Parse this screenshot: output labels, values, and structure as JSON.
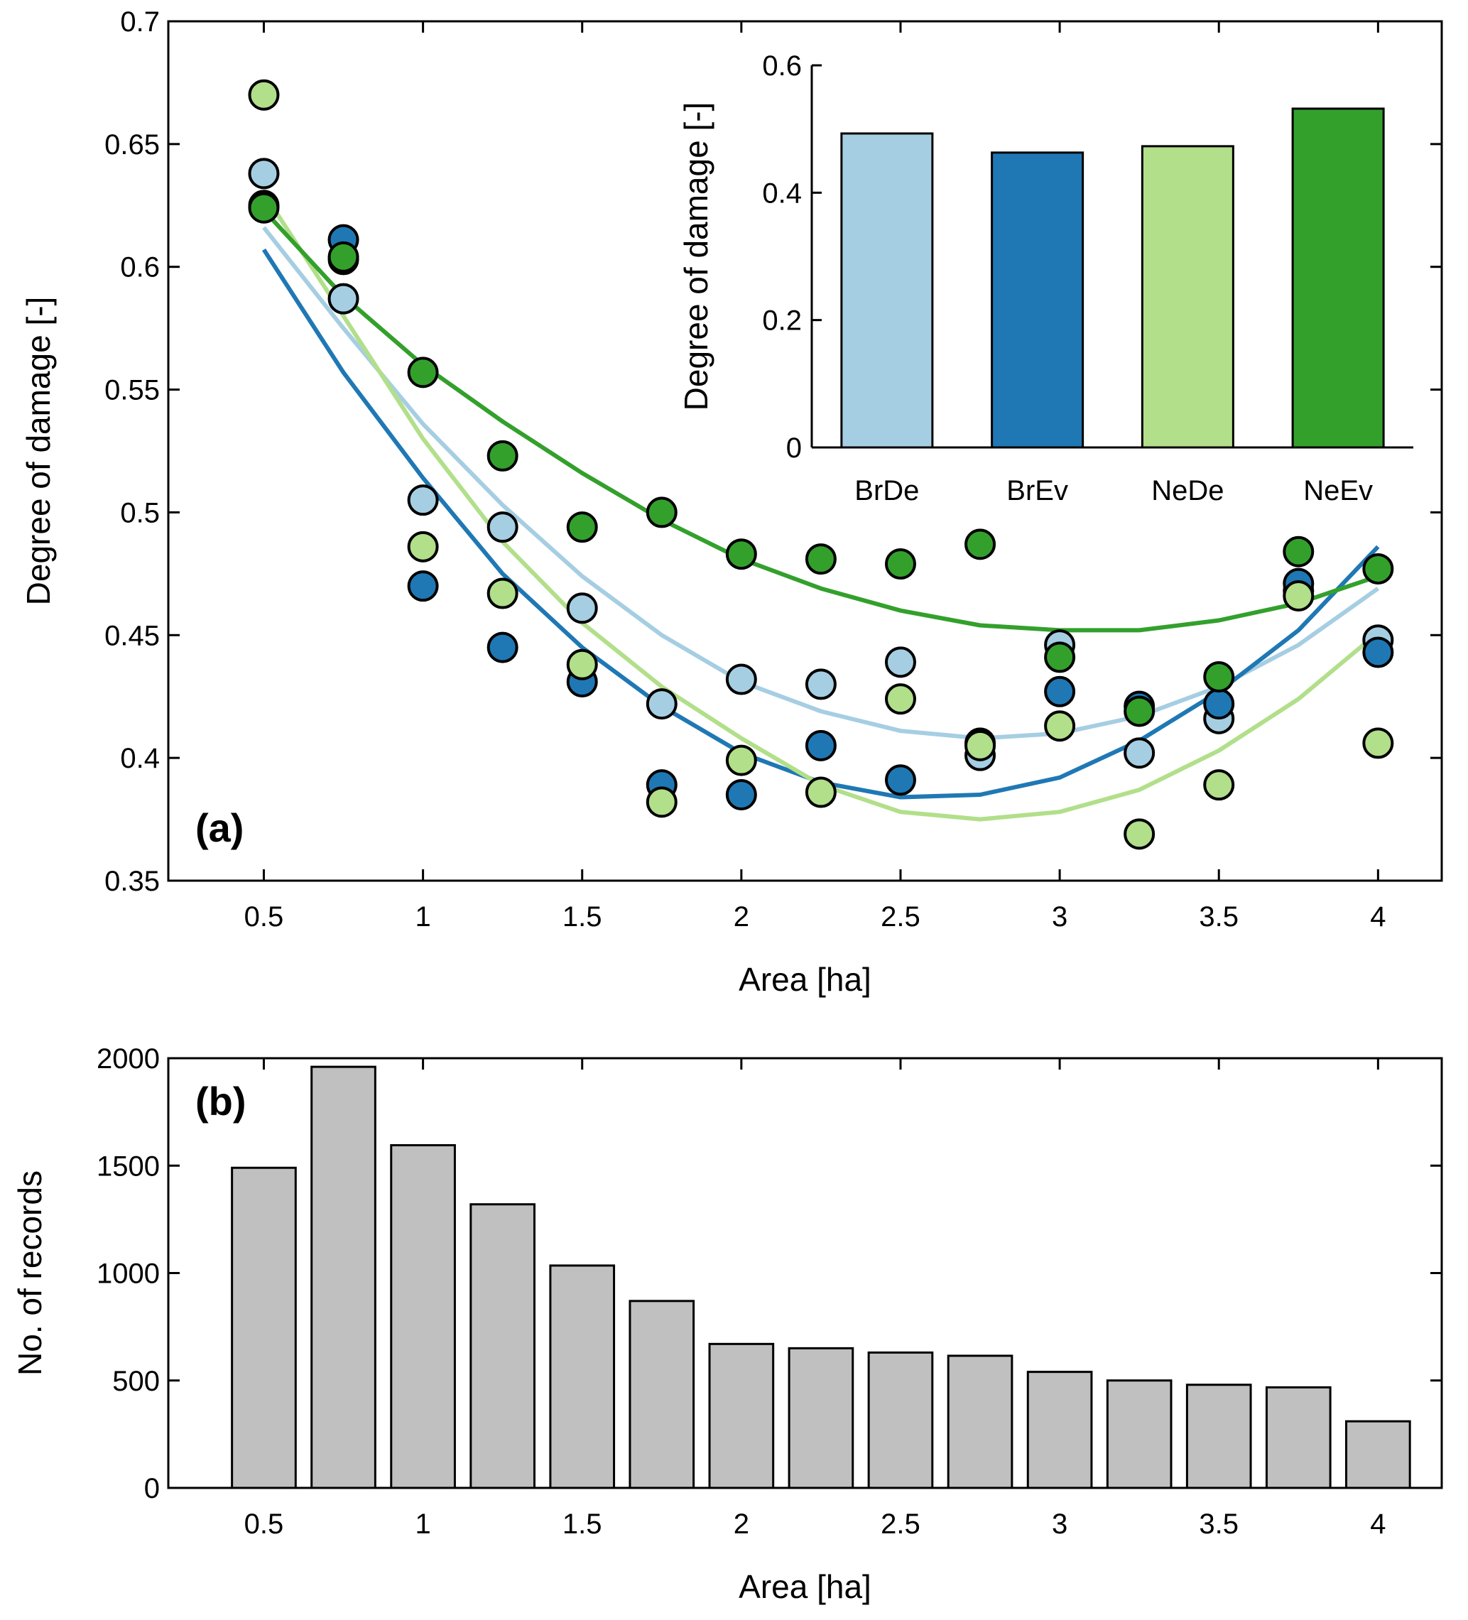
{
  "colors": {
    "BrDe": "#a6cee3",
    "BrEv": "#1f78b4",
    "NeDe": "#b2df8a",
    "NeEv": "#33a02c",
    "records_bar": "#c0c0c0",
    "marker_edge": "#000000"
  },
  "chart_data": [
    {
      "id": "a",
      "type": "scatter",
      "panel_label": "(a)",
      "xlabel": "Area [ha]",
      "ylabel": "Degree of damage [-]",
      "xlim": [
        0.2,
        4.2
      ],
      "ylim": [
        0.35,
        0.7
      ],
      "xticks": [
        0.5,
        1,
        1.5,
        2,
        2.5,
        3,
        3.5,
        4
      ],
      "xtick_labels": [
        "0.5",
        "1",
        "1.5",
        "2",
        "2.5",
        "3",
        "3.5",
        "4"
      ],
      "yticks": [
        0.35,
        0.4,
        0.45,
        0.5,
        0.55,
        0.6,
        0.65,
        0.7
      ],
      "ytick_labels": [
        "0.35",
        "0.4",
        "0.45",
        "0.5",
        "0.55",
        "0.6",
        "0.65",
        "0.7"
      ],
      "x": [
        0.5,
        0.75,
        1.0,
        1.25,
        1.5,
        1.75,
        2.0,
        2.25,
        2.5,
        2.75,
        3.0,
        3.25,
        3.5,
        3.75,
        4.0
      ],
      "series": [
        {
          "name": "BrDe",
          "points": [
            0.638,
            0.587,
            0.505,
            0.494,
            0.461,
            0.422,
            0.432,
            0.43,
            0.439,
            0.401,
            0.446,
            0.402,
            0.416,
            0.468,
            0.448
          ],
          "fit": [
            0.616,
            0.575,
            0.536,
            0.503,
            0.474,
            0.45,
            0.431,
            0.419,
            0.411,
            0.408,
            0.41,
            0.417,
            0.429,
            0.446,
            0.469
          ]
        },
        {
          "name": "BrEv",
          "points": [
            0.625,
            0.611,
            0.47,
            0.445,
            0.431,
            0.389,
            0.385,
            0.405,
            0.391,
            0.406,
            0.427,
            0.421,
            0.422,
            0.471,
            0.443
          ],
          "fit": [
            0.607,
            0.557,
            0.514,
            0.475,
            0.445,
            0.421,
            0.402,
            0.39,
            0.384,
            0.385,
            0.392,
            0.407,
            0.427,
            0.452,
            0.486
          ]
        },
        {
          "name": "NeDe",
          "points": [
            0.67,
            0.603,
            0.486,
            0.467,
            0.438,
            0.382,
            0.399,
            0.386,
            0.424,
            0.405,
            0.413,
            0.369,
            0.389,
            0.466,
            0.406
          ],
          "fit": [
            0.63,
            0.58,
            0.53,
            0.488,
            0.455,
            0.429,
            0.408,
            0.389,
            0.378,
            0.375,
            0.378,
            0.387,
            0.403,
            0.424,
            0.451
          ]
        },
        {
          "name": "NeEv",
          "points": [
            0.624,
            0.604,
            0.557,
            0.523,
            0.494,
            0.5,
            0.483,
            0.481,
            0.479,
            0.487,
            0.441,
            0.419,
            0.433,
            0.484,
            0.477
          ],
          "fit": [
            0.623,
            0.588,
            0.56,
            0.537,
            0.516,
            0.497,
            0.481,
            0.469,
            0.46,
            0.454,
            0.452,
            0.452,
            0.456,
            0.463,
            0.474
          ]
        }
      ]
    },
    {
      "id": "inset",
      "type": "bar",
      "ylabel": "Degree of damage [-]",
      "ylim": [
        0,
        0.6
      ],
      "yticks": [
        0,
        0.2,
        0.4,
        0.6
      ],
      "ytick_labels": [
        "0",
        "0.2",
        "0.4",
        "0.6"
      ],
      "categories": [
        "BrDe",
        "BrEv",
        "NeDe",
        "NeEv"
      ],
      "values": [
        0.493,
        0.463,
        0.473,
        0.532
      ]
    },
    {
      "id": "b",
      "type": "bar",
      "panel_label": "(b)",
      "xlabel": "Area [ha]",
      "ylabel": "No. of records",
      "xlim": [
        0.2,
        4.2
      ],
      "ylim": [
        0,
        2000
      ],
      "xticks": [
        0.5,
        1,
        1.5,
        2,
        2.5,
        3,
        3.5,
        4
      ],
      "xtick_labels": [
        "0.5",
        "1",
        "1.5",
        "2",
        "2.5",
        "3",
        "3.5",
        "4"
      ],
      "yticks": [
        0,
        500,
        1000,
        1500,
        2000
      ],
      "ytick_labels": [
        "0",
        "500",
        "1000",
        "1500",
        "2000"
      ],
      "x": [
        0.5,
        0.75,
        1.0,
        1.25,
        1.5,
        1.75,
        2.0,
        2.25,
        2.5,
        2.75,
        3.0,
        3.25,
        3.5,
        3.75,
        4.0
      ],
      "values": [
        1490,
        1960,
        1595,
        1320,
        1035,
        870,
        670,
        650,
        630,
        615,
        540,
        500,
        480,
        468,
        310
      ]
    }
  ]
}
